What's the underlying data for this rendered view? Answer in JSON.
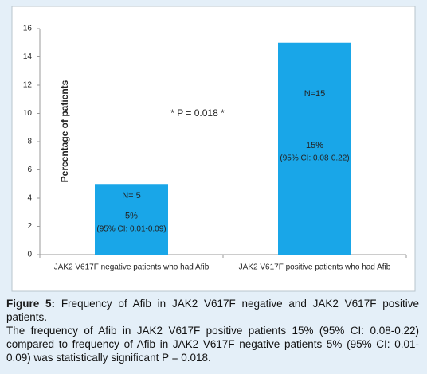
{
  "chart_data": {
    "type": "bar",
    "y_label": "Percentage of patients",
    "annotation": "* P = 0.018 *",
    "categories": [
      "JAK2 V617F negative patients who had Afib",
      "JAK2 V617F positive patients who had Afib"
    ],
    "values": [
      5,
      15
    ],
    "value_labels": [
      "5%",
      "15%"
    ],
    "sample_labels": [
      "N= 5",
      "N=15"
    ],
    "ci_labels": [
      "(95% CI: 0.01-0.09)",
      "(95% CI: 0.08-0.22)"
    ],
    "color": "#19a6e8",
    "ylim": [
      0,
      16
    ],
    "yticks": [
      0,
      2,
      4,
      6,
      8,
      10,
      12,
      14,
      16
    ],
    "grid": false
  },
  "caption": {
    "label": "Figure 5:",
    "title": "Frequency of Afib in JAK2 V617F negative and JAK2 V617F positive patients.",
    "text": "The frequency of Afib in JAK2 V617F positive patients 15% (95% CI: 0.08-0.22) compared to frequency of Afib in JAK2 V617F negative patients 5% (95% CI: 0.01- 0.09) was statistically significant P = 0.018."
  }
}
